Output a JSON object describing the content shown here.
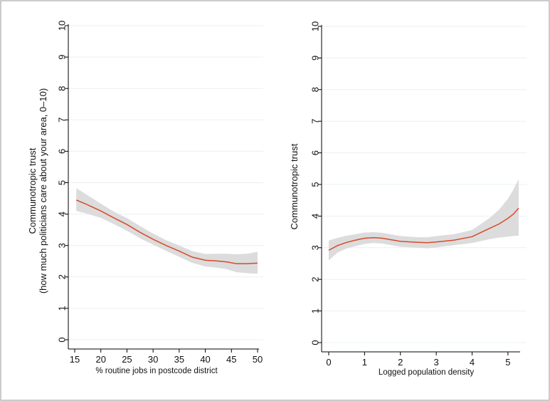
{
  "chart_data": [
    {
      "type": "line",
      "id": "left",
      "title": "",
      "xlabel": "% routine jobs in postcode district",
      "ylabel_lines": [
        "Communotropic trust",
        "(how much politicians care about your area, 0–10)"
      ],
      "xlim": [
        15,
        50
      ],
      "ylim": [
        0,
        10
      ],
      "xticks": [
        15,
        20,
        25,
        30,
        35,
        40,
        45,
        50
      ],
      "yticks": [
        0,
        1,
        2,
        3,
        4,
        5,
        6,
        7,
        8,
        9,
        10
      ],
      "grid": true,
      "line_color": "#d9492b",
      "band_color": "#dcdcdc",
      "series": [
        {
          "name": "fit",
          "x": [
            15.3,
            17,
            20,
            22.5,
            25,
            27.5,
            30,
            32.5,
            35,
            37.5,
            40,
            42,
            44,
            46,
            48,
            50
          ],
          "y": [
            4.45,
            4.33,
            4.1,
            3.88,
            3.67,
            3.42,
            3.2,
            3.0,
            2.82,
            2.63,
            2.53,
            2.51,
            2.48,
            2.42,
            2.42,
            2.44
          ],
          "lower": [
            4.1,
            4.03,
            3.88,
            3.68,
            3.47,
            3.23,
            3.03,
            2.83,
            2.64,
            2.45,
            2.33,
            2.3,
            2.25,
            2.15,
            2.12,
            2.1
          ],
          "upper": [
            4.82,
            4.65,
            4.33,
            4.08,
            3.87,
            3.62,
            3.38,
            3.17,
            3.0,
            2.82,
            2.73,
            2.74,
            2.74,
            2.72,
            2.74,
            2.8
          ]
        }
      ]
    },
    {
      "type": "line",
      "id": "right",
      "title": "",
      "xlabel": "Logged population density",
      "ylabel_lines": [
        "Communotropic trust"
      ],
      "xlim": [
        0,
        5.3
      ],
      "ylim": [
        0,
        10
      ],
      "xticks": [
        0,
        1,
        2,
        3,
        4,
        5
      ],
      "yticks": [
        0,
        1,
        2,
        3,
        4,
        5,
        6,
        7,
        8,
        9,
        10
      ],
      "grid": true,
      "line_color": "#d9492b",
      "band_color": "#dcdcdc",
      "series": [
        {
          "name": "fit",
          "x": [
            0,
            0.25,
            0.5,
            0.75,
            1.0,
            1.25,
            1.5,
            2.0,
            2.5,
            2.75,
            3.0,
            3.5,
            4.0,
            4.5,
            4.75,
            5.0,
            5.15,
            5.3
          ],
          "y": [
            2.92,
            3.07,
            3.17,
            3.24,
            3.3,
            3.32,
            3.3,
            3.2,
            3.17,
            3.16,
            3.18,
            3.24,
            3.35,
            3.62,
            3.75,
            3.93,
            4.06,
            4.25
          ],
          "lower": [
            2.6,
            2.85,
            2.98,
            3.05,
            3.12,
            3.15,
            3.13,
            3.03,
            3.0,
            2.98,
            3.01,
            3.08,
            3.15,
            3.27,
            3.32,
            3.35,
            3.37,
            3.38
          ],
          "upper": [
            3.23,
            3.31,
            3.38,
            3.43,
            3.48,
            3.49,
            3.47,
            3.37,
            3.33,
            3.33,
            3.37,
            3.43,
            3.56,
            3.95,
            4.2,
            4.55,
            4.83,
            5.17
          ]
        }
      ]
    }
  ]
}
